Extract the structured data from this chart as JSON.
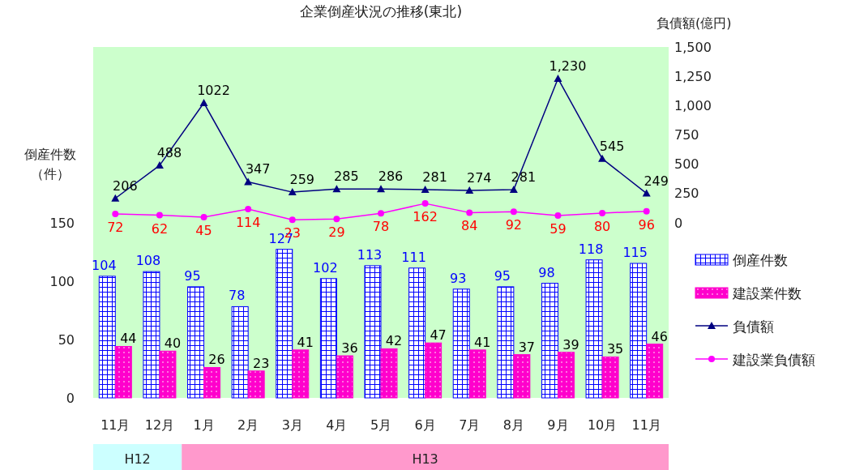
{
  "chart_data": {
    "type": "bar",
    "title": "企業倒産状況の推移(東北)",
    "ylabel": "倒産件数（件）",
    "y2label": "負債額(億円)",
    "categories": [
      "11月",
      "12月",
      "1月",
      "2月",
      "3月",
      "4月",
      "5月",
      "6月",
      "7月",
      "8月",
      "9月",
      "10月",
      "11月"
    ],
    "series": [
      {
        "name": "倒産件数",
        "color": "#0000ff",
        "values": [
          104,
          108,
          95,
          78,
          127,
          102,
          113,
          111,
          93,
          95,
          98,
          118,
          115
        ]
      },
      {
        "name": "建設業件数",
        "color": "#ff00cc",
        "values": [
          44,
          40,
          26,
          23,
          41,
          36,
          42,
          47,
          41,
          37,
          39,
          35,
          46
        ]
      },
      {
        "name": "負債額",
        "type": "line",
        "axis": "y2",
        "marker": "triangle",
        "color": "#000080",
        "values": [
          206,
          488,
          1022,
          347,
          259,
          285,
          286,
          281,
          274,
          281,
          1230,
          545,
          249
        ],
        "value_labels": [
          "206",
          "488",
          "1022",
          "347",
          "259",
          "285",
          "286",
          "281",
          "274",
          "281",
          "1,230",
          "545",
          "249"
        ]
      },
      {
        "name": "建設業負債額",
        "type": "line",
        "axis": "y2",
        "marker": "circle",
        "color": "#ff00ff",
        "values": [
          72,
          62,
          45,
          114,
          23,
          29,
          78,
          162,
          84,
          92,
          59,
          80,
          96
        ]
      }
    ],
    "ylim": [
      0,
      300
    ],
    "yticks": [
      0,
      50,
      100,
      150
    ],
    "y2lim": [
      -1500,
      1500
    ],
    "y2ticks": [
      0,
      250,
      500,
      750,
      {
        "value": 1000,
        "label": "1,000"
      },
      {
        "value": 1250,
        "label": "1,250"
      },
      {
        "value": 1500,
        "label": "1,500"
      }
    ],
    "data_labels": true,
    "legend": "right",
    "grid": false,
    "annotations": [
      "H12",
      "H13"
    ]
  }
}
